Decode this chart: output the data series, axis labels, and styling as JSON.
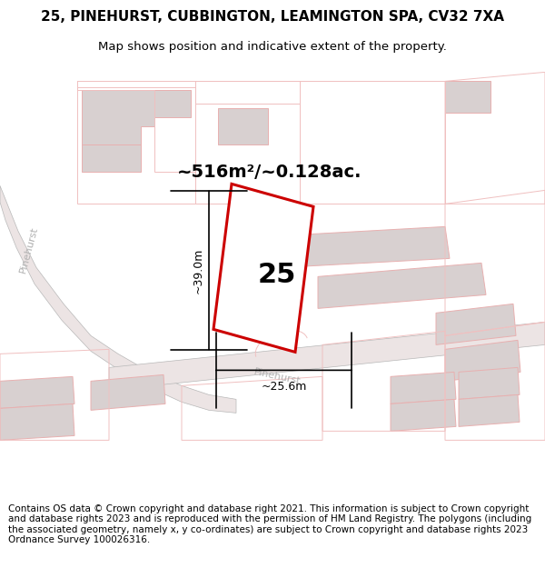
{
  "title_line1": "25, PINEHURST, CUBBINGTON, LEAMINGTON SPA, CV32 7XA",
  "title_line2": "Map shows position and indicative extent of the property.",
  "footer_text": "Contains OS data © Crown copyright and database right 2021. This information is subject to Crown copyright and database rights 2023 and is reproduced with the permission of HM Land Registry. The polygons (including the associated geometry, namely x, y co-ordinates) are subject to Crown copyright and database rights 2023 Ordnance Survey 100026316.",
  "area_label": "~516m²/~0.128ac.",
  "number_label": "25",
  "dim_vertical": "~39.0m",
  "dim_horizontal": "~25.6m",
  "road_label1": "Pinehurst",
  "road_label2": "Pinehurst",
  "bg_color": "#ffffff",
  "map_bg": "#ffffff",
  "plot_fill": "#ffffff",
  "plot_stroke": "#cc0000",
  "building_fill": "#e0d8d8",
  "building_fill2": "#d8d0d0",
  "road_fill": "#e8e0e0",
  "parcel_edge": "#f0c0c0",
  "building_edge": "#e8b0b0",
  "road_edge": "#d0b0b0",
  "grey_road_edge": "#b8b8b8",
  "road_label_color": "#b0b0b0",
  "title_fontsize": 11,
  "subtitle_fontsize": 9.5,
  "footer_fontsize": 7.5,
  "area_fontsize": 14,
  "num_fontsize": 22,
  "dim_fontsize": 9
}
